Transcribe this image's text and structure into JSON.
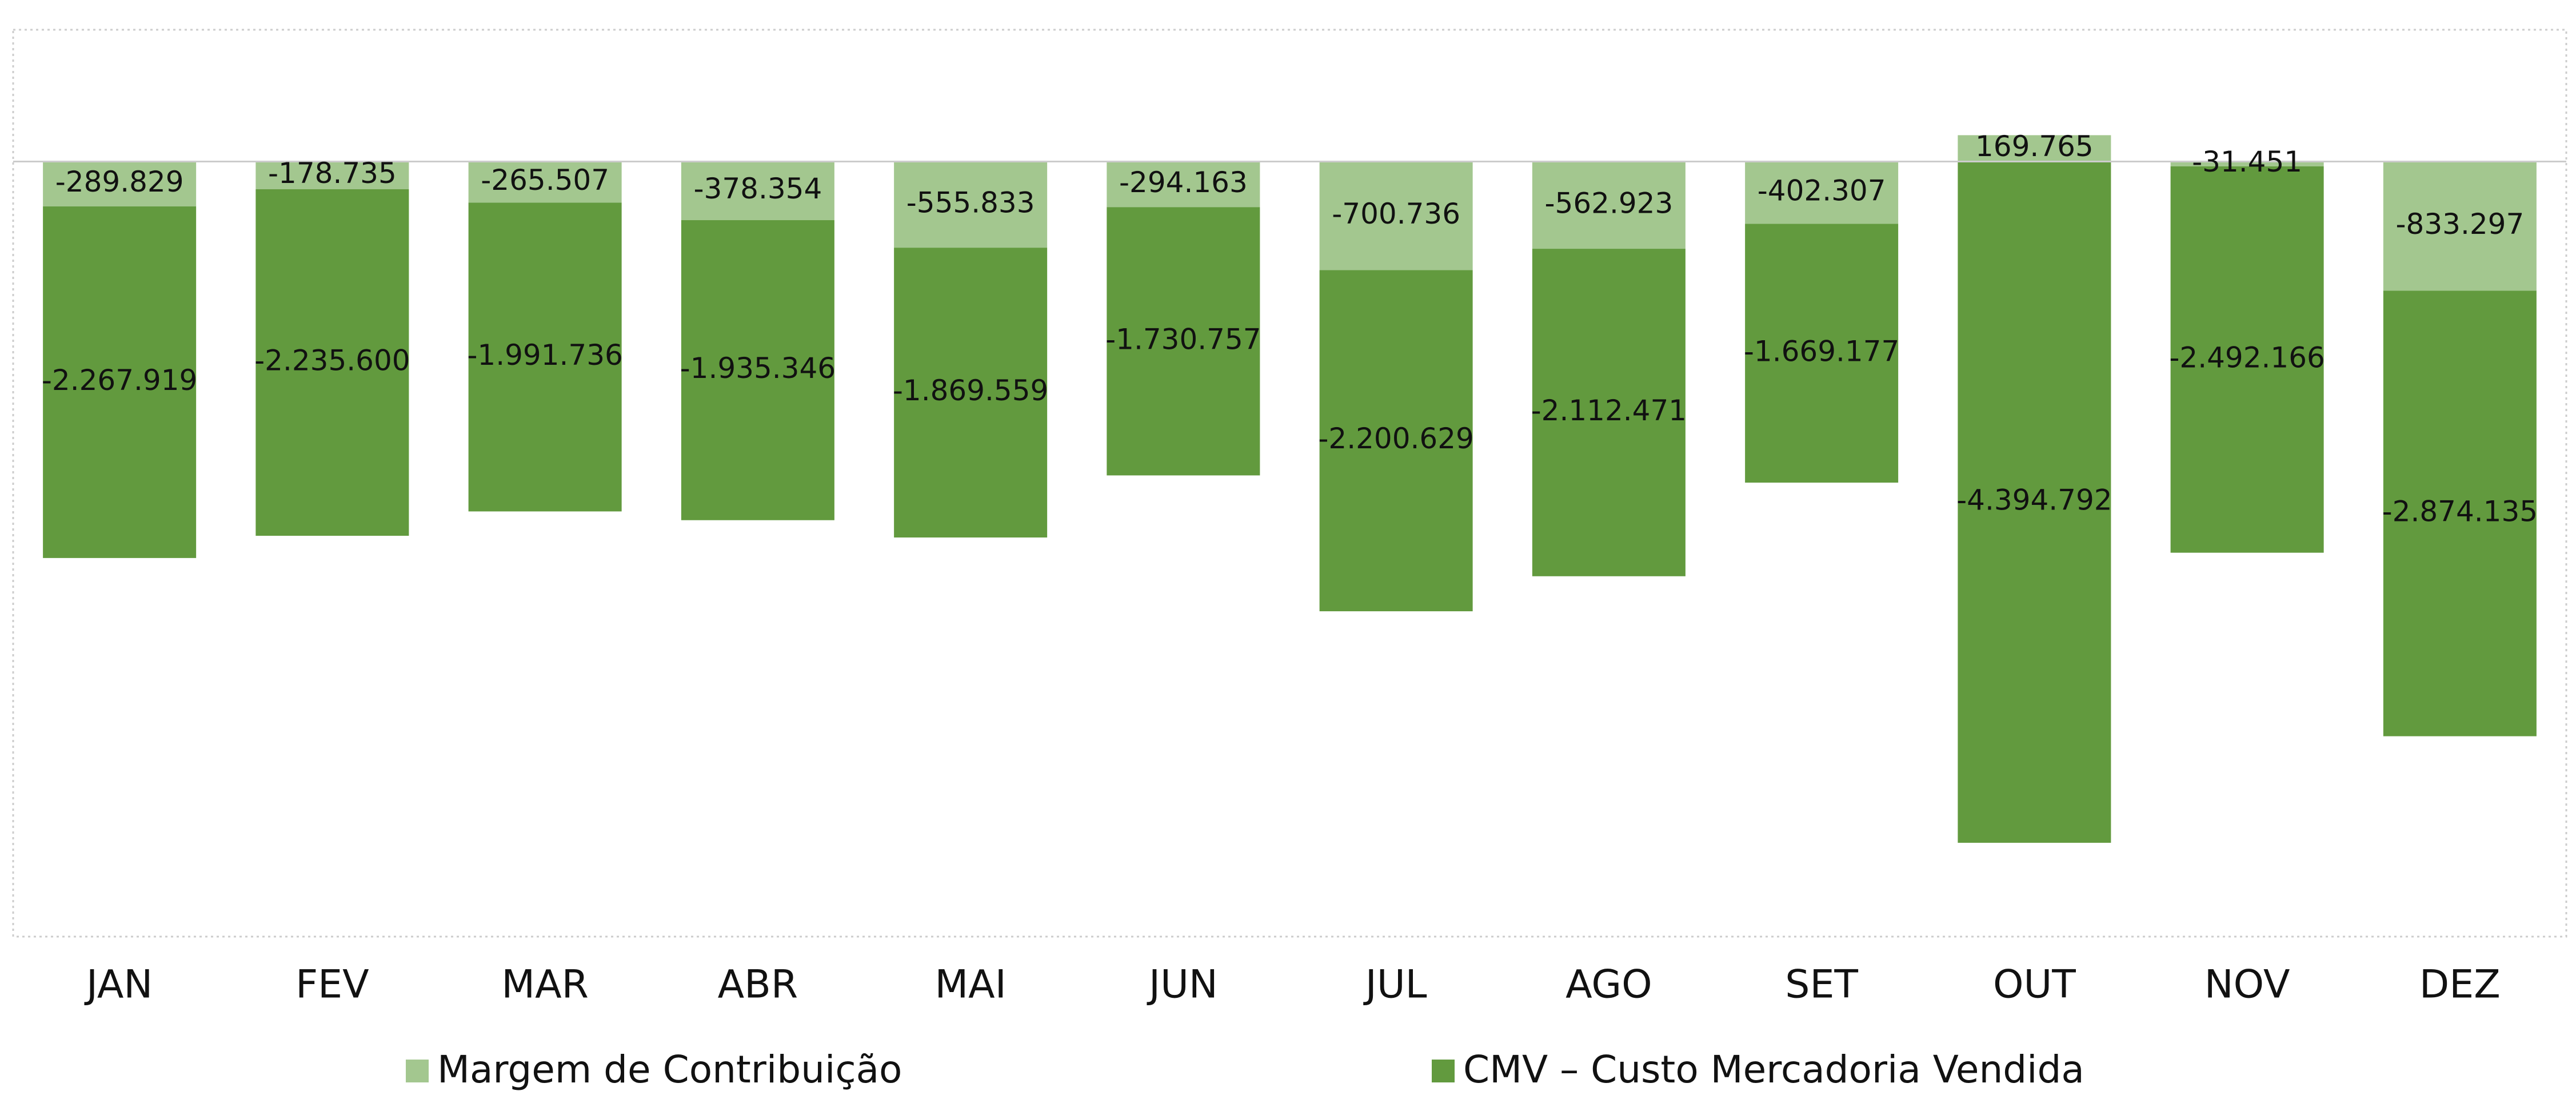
{
  "chart_data": {
    "type": "bar",
    "stacked": true,
    "categories": [
      "JAN",
      "FEV",
      "MAR",
      "ABR",
      "MAI",
      "JUN",
      "JUL",
      "AGO",
      "SET",
      "OUT",
      "NOV",
      "DEZ"
    ],
    "series": [
      {
        "name": "Margem de Contribuição",
        "color": "#a3c78f",
        "values": [
          -289829,
          -178735,
          -265507,
          -378354,
          -555833,
          -294163,
          -700736,
          -562923,
          -402307,
          169765,
          -31451,
          -833297
        ],
        "value_labels": [
          "-289.829",
          "-178.735",
          "-265.507",
          "-378.354",
          "-555.833",
          "-294.163",
          "-700.736",
          "-562.923",
          "-402.307",
          "169.765",
          "-31.451",
          "-833.297"
        ]
      },
      {
        "name": "CMV – Custo Mercadoria Vendida",
        "color": "#629a3e",
        "values": [
          -2267919,
          -2235600,
          -1991736,
          -1935346,
          -1869559,
          -1730757,
          -2200629,
          -2112471,
          -1669177,
          -4394792,
          -2492166,
          -2874135
        ],
        "value_labels": [
          "-2.267.919",
          "-2.235.600",
          "-1.991.736",
          "-1.935.346",
          "-1.869.559",
          "-1.730.757",
          "-2.200.629",
          "-2.112.471",
          "-1.669.177",
          "-4.394.792",
          "-2.492.166",
          "-2.874.135"
        ]
      }
    ],
    "ylim": [
      -5000000,
      850000
    ]
  }
}
